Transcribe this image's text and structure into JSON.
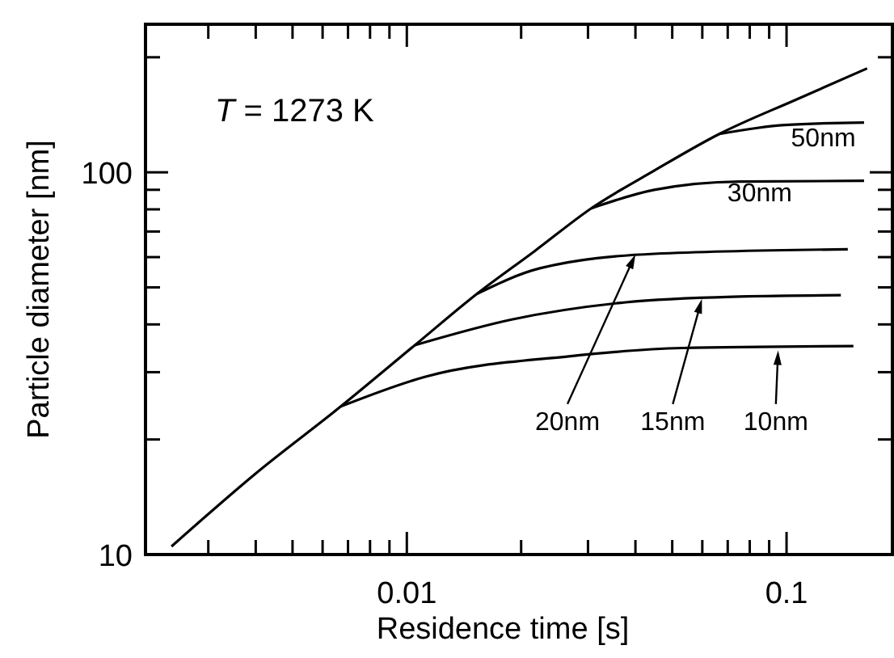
{
  "chart_data": {
    "type": "line",
    "xlabel": "Residence time [s]",
    "ylabel": "Particle diameter [nm]",
    "log": "xy",
    "xlim": [
      0.00205,
      0.19
    ],
    "ylim": [
      10,
      244
    ],
    "xticks": [
      {
        "value": 0.003,
        "label": null
      },
      {
        "value": 0.004,
        "label": null
      },
      {
        "value": 0.005,
        "label": null
      },
      {
        "value": 0.006,
        "label": null
      },
      {
        "value": 0.007,
        "label": null
      },
      {
        "value": 0.008,
        "label": null
      },
      {
        "value": 0.009,
        "label": null
      },
      0.01,
      {
        "value": 0.02,
        "label": null
      },
      {
        "value": 0.03,
        "label": null
      },
      {
        "value": 0.04,
        "label": null
      },
      {
        "value": 0.05,
        "label": null
      },
      {
        "value": 0.06,
        "label": null
      },
      {
        "value": 0.07,
        "label": null
      },
      {
        "value": 0.08,
        "label": null
      },
      {
        "value": 0.09,
        "label": null
      },
      0.1
    ],
    "yticks": [
      10,
      {
        "value": 20,
        "label": null
      },
      {
        "value": 30,
        "label": null
      },
      {
        "value": 40,
        "label": null
      },
      {
        "value": 50,
        "label": null
      },
      {
        "value": 60,
        "label": null
      },
      {
        "value": 70,
        "label": null
      },
      {
        "value": 80,
        "label": null
      },
      {
        "value": 90,
        "label": null
      },
      100,
      {
        "value": 200,
        "label": null
      }
    ],
    "grid": false,
    "marker": "none",
    "line_style": "solid",
    "annotations": [
      "T = 1273 K",
      "10nm",
      "15nm",
      "20nm"
    ],
    "series": [
      {
        "color": "#000000",
        "x": [
          0.0024,
          0.004,
          0.0067,
          0.0105,
          0.0153,
          0.0217,
          0.0306,
          0.0448,
          0.0665,
          0.106,
          0.163
        ],
        "values": [
          10.5,
          16.3,
          24.4,
          35.3,
          48.1,
          62.2,
          80.5,
          101,
          126,
          155,
          187
        ]
      },
      {
        "color": "#000000",
        "x": [
          0.0067,
          0.0112,
          0.0267,
          0.0532,
          0.15
        ],
        "values": [
          24.4,
          29.2,
          33.0,
          34.7,
          35.1
        ]
      },
      {
        "color": "#000000",
        "x": [
          0.0105,
          0.0189,
          0.0377,
          0.0752,
          0.139
        ],
        "values": [
          35.3,
          41.2,
          45.7,
          47.3,
          47.7
        ]
      },
      {
        "color": "#000000",
        "x": [
          0.0153,
          0.0224,
          0.0448,
          0.145
        ],
        "values": [
          48.1,
          56.1,
          61.2,
          62.9
        ]
      },
      {
        "name": "30nm",
        "color": "#000000",
        "x": [
          0.0306,
          0.0448,
          0.0752,
          0.16
        ],
        "values": [
          80.5,
          90.0,
          94.6,
          95.0
        ]
      },
      {
        "name": "50nm",
        "color": "#000000",
        "x": [
          0.0665,
          0.099,
          0.16
        ],
        "values": [
          126,
          133,
          135
        ]
      }
    ]
  }
}
